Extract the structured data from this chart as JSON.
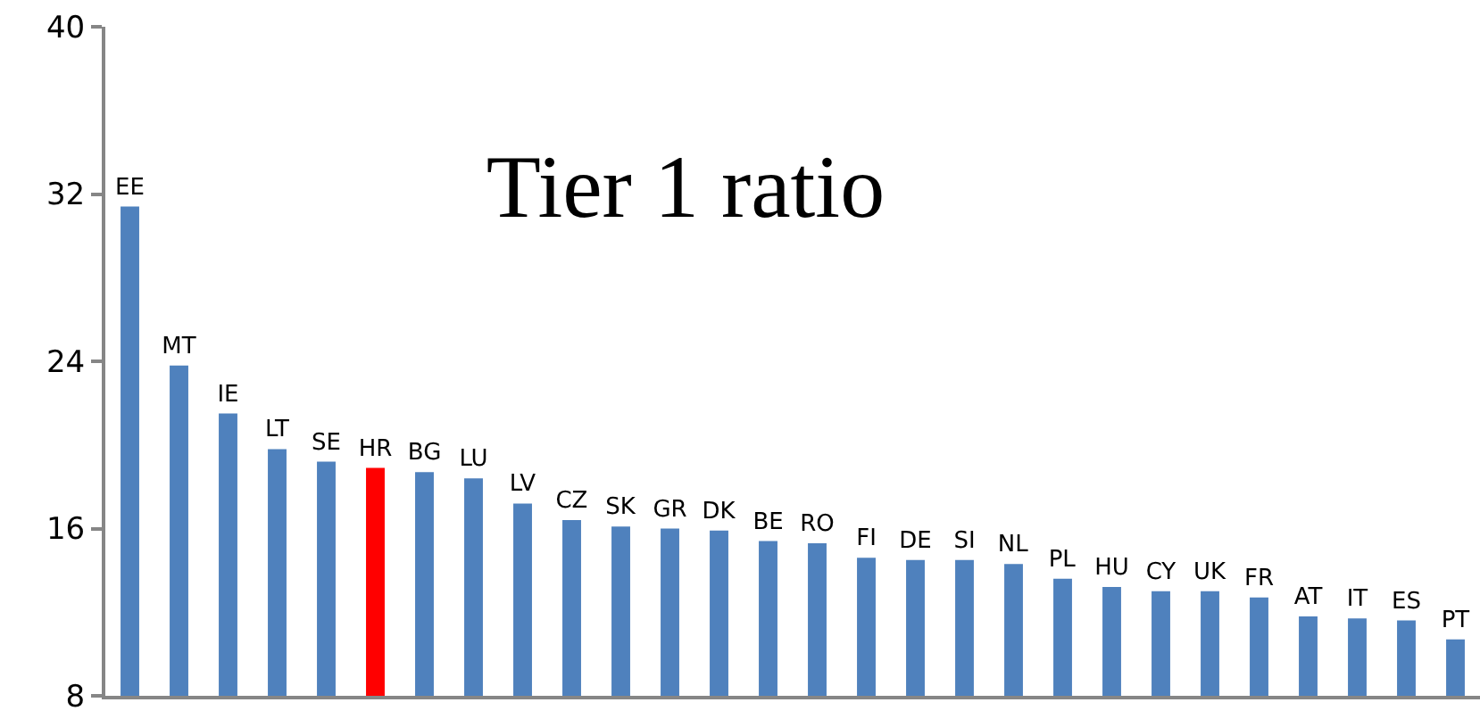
{
  "chart_data": {
    "type": "bar",
    "title": "Tier 1 ratio",
    "categories": [
      "EE",
      "MT",
      "IE",
      "LT",
      "SE",
      "HR",
      "BG",
      "LU",
      "LV",
      "CZ",
      "SK",
      "GR",
      "DK",
      "BE",
      "RO",
      "FI",
      "DE",
      "SI",
      "NL",
      "PL",
      "HU",
      "CY",
      "UK",
      "FR",
      "AT",
      "IT",
      "ES",
      "PT"
    ],
    "values": [
      31.4,
      23.8,
      21.5,
      19.8,
      19.2,
      18.9,
      18.7,
      18.4,
      17.2,
      16.4,
      16.1,
      16.0,
      15.9,
      15.4,
      15.3,
      14.6,
      14.5,
      14.5,
      14.3,
      13.6,
      13.2,
      13.0,
      13.0,
      12.7,
      11.8,
      11.7,
      11.6,
      10.7
    ],
    "colors": [
      "#4f81bd",
      "#4f81bd",
      "#4f81bd",
      "#4f81bd",
      "#4f81bd",
      "#ff0000",
      "#4f81bd",
      "#4f81bd",
      "#4f81bd",
      "#4f81bd",
      "#4f81bd",
      "#4f81bd",
      "#4f81bd",
      "#4f81bd",
      "#4f81bd",
      "#4f81bd",
      "#4f81bd",
      "#4f81bd",
      "#4f81bd",
      "#4f81bd",
      "#4f81bd",
      "#4f81bd",
      "#4f81bd",
      "#4f81bd",
      "#4f81bd",
      "#4f81bd",
      "#4f81bd",
      "#4f81bd"
    ],
    "ylim": [
      8,
      40
    ],
    "yticks": [
      8,
      16,
      24,
      32,
      40
    ],
    "tick_labels": "y"
  }
}
